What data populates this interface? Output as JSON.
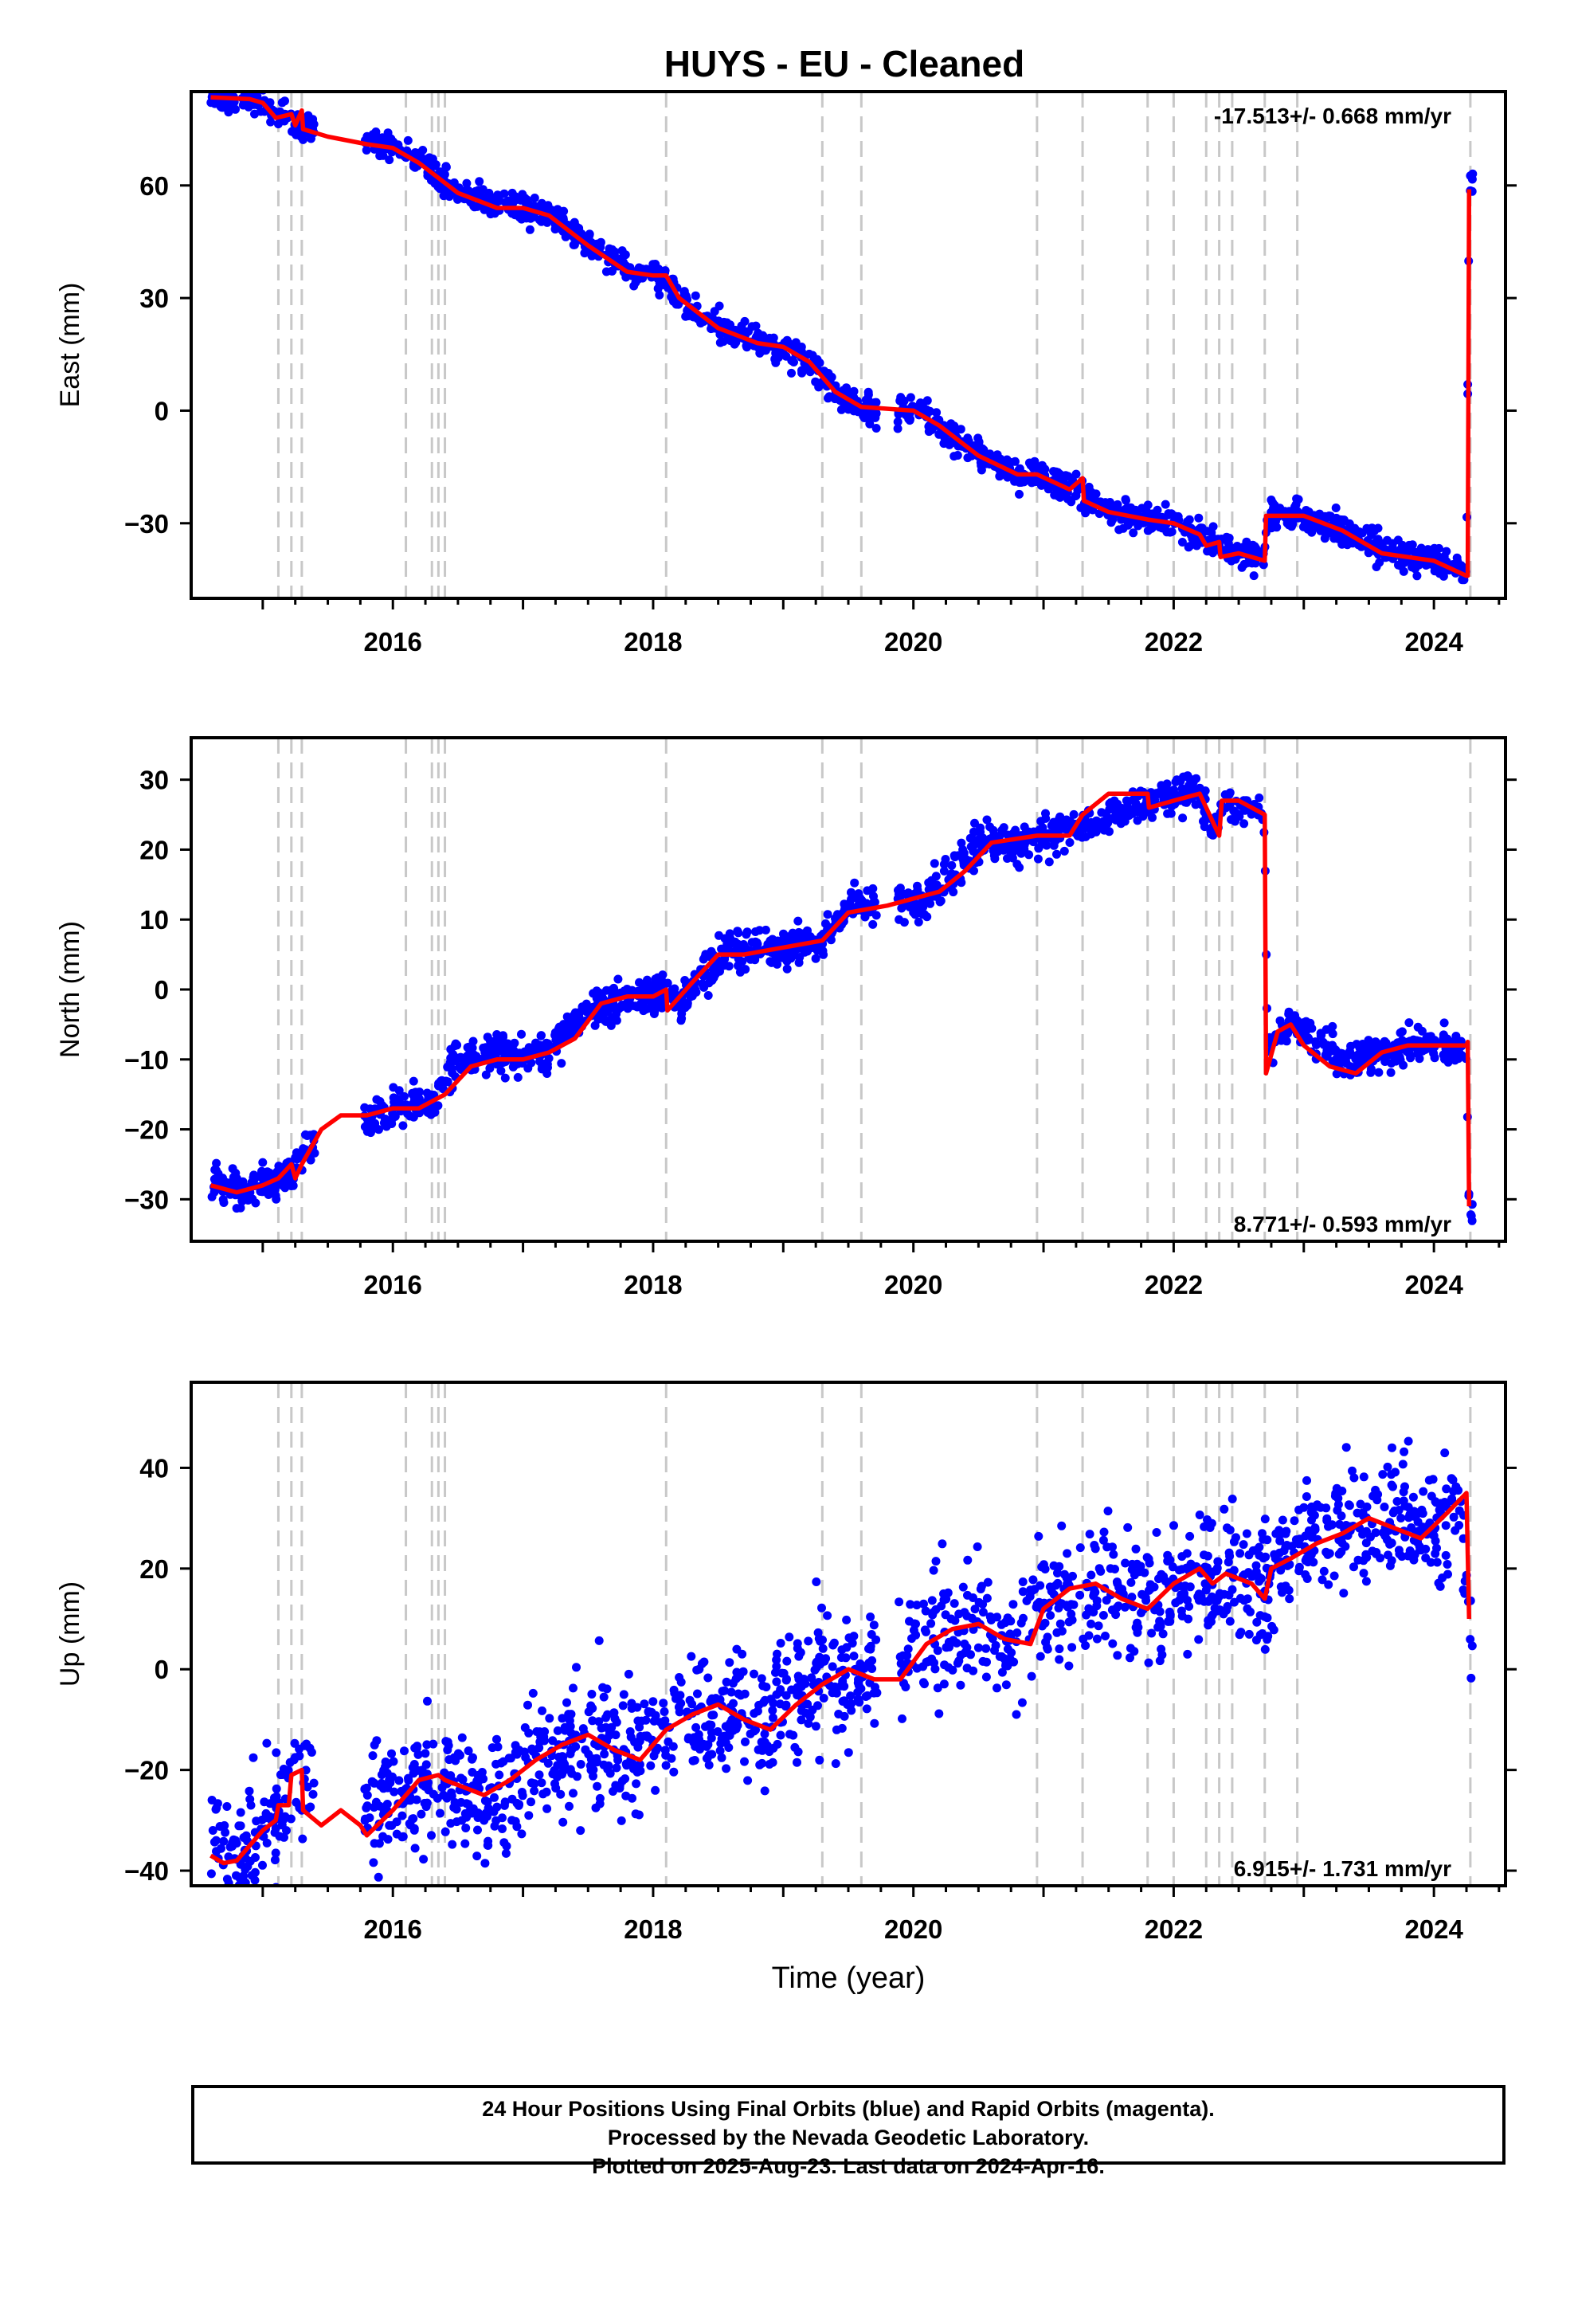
{
  "title": "HUYS  - EU - Cleaned",
  "footer": {
    "line1": "24 Hour Positions Using Final Orbits (blue) and Rapid Orbits (magenta).",
    "line2": "Processed by the Nevada Geodetic Laboratory.",
    "line3": "Plotted on 2025-Aug-23. Last data on 2024-Apr-16."
  },
  "colors": {
    "points": "#0000ff",
    "model": "#ff0000",
    "event_lines": "#c8c8c8"
  },
  "chart_data": [
    {
      "type": "scatter",
      "title": "HUYS  - EU - Cleaned",
      "xlabel": "",
      "ylabel": "East (mm)",
      "xlim": [
        2014.45,
        2024.55
      ],
      "ylim": [
        -50,
        85
      ],
      "xticks": [
        "2016",
        "2018",
        "2020",
        "2022",
        "2024"
      ],
      "yticks": [
        "60",
        "30",
        "0",
        "-30"
      ],
      "rate_label": "-17.513+/- 0.668 mm/yr",
      "rate_position": "top-right",
      "event_lines": [
        2015.12,
        2015.22,
        2015.3,
        2016.1,
        2016.3,
        2016.35,
        2016.4,
        2018.1,
        2019.3,
        2019.6,
        2020.95,
        2021.3,
        2021.8,
        2022.0,
        2022.25,
        2022.35,
        2022.45,
        2022.7,
        2022.95,
        2024.28
      ],
      "series": [
        {
          "name": "positions",
          "style": "points",
          "noise": 1.8,
          "x": [
            2014.6,
            2014.8,
            2015.0,
            2015.12,
            2015.22,
            2015.35,
            2015.5,
            2015.8,
            2016.0,
            2016.2,
            2016.5,
            2016.8,
            2017.0,
            2017.2,
            2017.5,
            2017.8,
            2018.0,
            2018.1,
            2018.2,
            2018.5,
            2018.8,
            2019.0,
            2019.2,
            2019.4,
            2019.6,
            2020.0,
            2020.2,
            2020.5,
            2020.8,
            2020.95,
            2021.2,
            2021.3,
            2021.5,
            2021.8,
            2022.0,
            2022.2,
            2022.35,
            2022.5,
            2022.7,
            2022.72,
            2023.0,
            2023.3,
            2023.6,
            2024.0,
            2024.25,
            2024.27,
            2024.3
          ],
          "y": [
            84,
            83,
            82,
            79,
            77,
            75,
            73,
            72,
            71,
            67,
            58,
            55,
            54,
            52,
            44,
            37,
            36,
            35,
            30,
            22,
            18,
            16,
            13,
            5,
            1,
            0,
            -4,
            -12,
            -17,
            -17,
            -20,
            -22,
            -27,
            -29,
            -30,
            -33,
            -36,
            -38,
            -39,
            -27,
            -28,
            -32,
            -37,
            -40,
            -43,
            58,
            61
          ]
        },
        {
          "name": "model",
          "style": "line",
          "x": [
            2014.6,
            2014.9,
            2015.0,
            2015.1,
            2015.22,
            2015.25,
            2015.3,
            2015.31,
            2015.5,
            2015.8,
            2016.0,
            2016.2,
            2016.5,
            2016.8,
            2017.0,
            2017.2,
            2017.5,
            2017.8,
            2018.0,
            2018.1,
            2018.2,
            2018.5,
            2018.8,
            2019.0,
            2019.2,
            2019.4,
            2019.6,
            2020.0,
            2020.2,
            2020.5,
            2020.8,
            2020.95,
            2021.2,
            2021.3,
            2021.31,
            2021.5,
            2021.8,
            2022.0,
            2022.2,
            2022.25,
            2022.35,
            2022.36,
            2022.5,
            2022.7,
            2022.71,
            2023.0,
            2023.3,
            2023.6,
            2024.0,
            2024.25,
            2024.26,
            2024.27
          ],
          "y": [
            83.5,
            83,
            82,
            78,
            79,
            76,
            80,
            75,
            73,
            71,
            70,
            66,
            58,
            54,
            54,
            52,
            44,
            37,
            36,
            36,
            30,
            22,
            18,
            17,
            13,
            5,
            1,
            0,
            -4,
            -12,
            -17,
            -17,
            -21,
            -18,
            -24,
            -27,
            -29,
            -30,
            -33,
            -36,
            -35,
            -39,
            -38,
            -40,
            -28,
            -28,
            -32,
            -38,
            -40,
            -44,
            -44,
            59
          ]
        }
      ]
    },
    {
      "type": "scatter",
      "xlabel": "",
      "ylabel": "North (mm)",
      "xlim": [
        2014.45,
        2024.55
      ],
      "ylim": [
        -36,
        36
      ],
      "xticks": [
        "2016",
        "2018",
        "2020",
        "2022",
        "2024"
      ],
      "yticks": [
        "30",
        "20",
        "10",
        "0",
        "-10",
        "-20",
        "-30"
      ],
      "rate_label": "8.771+/- 0.593 mm/yr",
      "rate_position": "bottom-right",
      "event_lines": [
        2015.12,
        2015.22,
        2015.3,
        2016.1,
        2016.3,
        2016.35,
        2016.4,
        2018.1,
        2019.3,
        2019.6,
        2020.95,
        2021.3,
        2021.8,
        2022.0,
        2022.25,
        2022.35,
        2022.45,
        2022.7,
        2022.95,
        2024.28
      ],
      "series": [
        {
          "name": "positions",
          "style": "points",
          "noise": 1.3,
          "x": [
            2014.6,
            2014.8,
            2015.0,
            2015.2,
            2015.35,
            2015.8,
            2016.0,
            2016.3,
            2016.5,
            2016.8,
            2017.0,
            2017.2,
            2017.5,
            2017.8,
            2018.0,
            2018.1,
            2018.2,
            2018.5,
            2018.8,
            2019.0,
            2019.3,
            2019.5,
            2019.9,
            2020.1,
            2020.3,
            2020.5,
            2020.8,
            2021.0,
            2021.3,
            2021.5,
            2021.8,
            2022.0,
            2022.2,
            2022.3,
            2022.4,
            2022.7,
            2022.72,
            2022.9,
            2023.2,
            2023.5,
            2023.8,
            2024.0,
            2024.25,
            2024.27,
            2024.3
          ],
          "y": [
            -27,
            -29,
            -28,
            -26,
            -23,
            -18,
            -17,
            -16,
            -10,
            -9,
            -10,
            -9,
            -3,
            -1,
            -1,
            0,
            -2,
            5,
            6,
            6,
            7,
            12,
            12,
            13,
            16,
            21,
            21,
            22,
            23,
            25,
            27,
            28,
            28,
            23,
            27,
            25,
            -8,
            -5,
            -9,
            -10,
            -8,
            -8,
            -9,
            -31,
            -34
          ]
        },
        {
          "name": "model",
          "style": "line",
          "x": [
            2014.6,
            2014.8,
            2015.0,
            2015.12,
            2015.22,
            2015.25,
            2015.3,
            2015.45,
            2015.6,
            2015.8,
            2016.0,
            2016.2,
            2016.4,
            2016.6,
            2016.8,
            2017.0,
            2017.2,
            2017.4,
            2017.6,
            2017.8,
            2018.0,
            2018.1,
            2018.11,
            2018.3,
            2018.5,
            2018.7,
            2019.0,
            2019.3,
            2019.5,
            2019.8,
            2020.0,
            2020.2,
            2020.4,
            2020.6,
            2020.95,
            2021.2,
            2021.3,
            2021.5,
            2021.8,
            2021.81,
            2022.0,
            2022.2,
            2022.25,
            2022.35,
            2022.37,
            2022.5,
            2022.7,
            2022.71,
            2022.8,
            2022.9,
            2023.0,
            2023.2,
            2023.4,
            2023.6,
            2023.8,
            2024.0,
            2024.25,
            2024.26,
            2024.27
          ],
          "y": [
            -28,
            -29,
            -28,
            -27,
            -25,
            -27,
            -25,
            -20,
            -18,
            -18,
            -17,
            -17,
            -15,
            -11,
            -10,
            -10,
            -9,
            -7,
            -2,
            -1,
            -1,
            0,
            -3,
            1,
            5,
            5,
            6,
            7,
            11,
            12,
            13,
            14,
            17,
            21,
            22,
            22,
            25,
            28,
            28,
            26,
            27,
            28,
            26,
            22,
            27,
            27,
            25,
            -12,
            -6,
            -5,
            -8,
            -11,
            -12,
            -9,
            -8,
            -8,
            -8,
            -7.5,
            -31
          ]
        }
      ]
    },
    {
      "type": "scatter",
      "xlabel": "Time (year)",
      "ylabel": "Up (mm)",
      "xlim": [
        2014.45,
        2024.55
      ],
      "ylim": [
        -43,
        57
      ],
      "xticks": [
        "2016",
        "2018",
        "2020",
        "2022",
        "2024"
      ],
      "yticks": [
        "40",
        "20",
        "0",
        "-20",
        "-40"
      ],
      "rate_label": "6.915+/- 1.731 mm/yr",
      "rate_position": "bottom-right",
      "event_lines": [
        2015.12,
        2015.22,
        2015.3,
        2016.1,
        2016.3,
        2016.35,
        2016.4,
        2018.1,
        2019.3,
        2019.6,
        2020.95,
        2021.3,
        2021.8,
        2022.0,
        2022.25,
        2022.35,
        2022.45,
        2022.7,
        2022.95,
        2024.28
      ],
      "series": [
        {
          "name": "positions",
          "style": "points",
          "noise": 6,
          "x": [
            2014.6,
            2014.8,
            2015.0,
            2015.1,
            2015.2,
            2015.3,
            2015.8,
            2016.0,
            2016.3,
            2016.5,
            2016.7,
            2017.0,
            2017.3,
            2017.6,
            2017.8,
            2018.0,
            2018.3,
            2018.6,
            2018.8,
            2019.0,
            2019.3,
            2019.6,
            2019.9,
            2020.1,
            2020.4,
            2020.7,
            2020.9,
            2021.2,
            2021.5,
            2021.8,
            2022.0,
            2022.2,
            2022.4,
            2022.6,
            2022.7,
            2022.9,
            2023.2,
            2023.4,
            2023.7,
            2024.0,
            2024.2,
            2024.27,
            2024.3
          ],
          "y": [
            -36,
            -38,
            -32,
            -28,
            -24,
            -21,
            -30,
            -25,
            -22,
            -24,
            -27,
            -20,
            -17,
            -14,
            -18,
            -14,
            -11,
            -9,
            -11,
            -6,
            -1,
            -3,
            2,
            6,
            8,
            6,
            10,
            15,
            16,
            13,
            15,
            18,
            17,
            18,
            18,
            23,
            27,
            28,
            30,
            27,
            32,
            10,
            2
          ]
        },
        {
          "name": "model",
          "style": "line",
          "x": [
            2014.6,
            2014.7,
            2014.8,
            2014.9,
            2015.0,
            2015.1,
            2015.12,
            2015.2,
            2015.22,
            2015.3,
            2015.31,
            2015.45,
            2015.6,
            2015.75,
            2015.8,
            2016.0,
            2016.2,
            2016.35,
            2016.4,
            2016.5,
            2016.7,
            2016.9,
            2017.1,
            2017.3,
            2017.5,
            2017.7,
            2017.9,
            2018.1,
            2018.3,
            2018.5,
            2018.7,
            2018.9,
            2019.1,
            2019.3,
            2019.5,
            2019.7,
            2019.9,
            2020.1,
            2020.3,
            2020.5,
            2020.7,
            2020.9,
            2021.0,
            2021.2,
            2021.4,
            2021.6,
            2021.8,
            2022.0,
            2022.2,
            2022.3,
            2022.4,
            2022.6,
            2022.7,
            2022.75,
            2022.9,
            2023.1,
            2023.3,
            2023.5,
            2023.7,
            2023.9,
            2024.1,
            2024.25,
            2024.27
          ],
          "y": [
            -37,
            -38.5,
            -38,
            -35,
            -32,
            -30,
            -27,
            -27,
            -21,
            -20,
            -28,
            -31,
            -28,
            -31,
            -33,
            -28,
            -22,
            -21,
            -22,
            -23,
            -25,
            -22,
            -18,
            -15,
            -13,
            -16,
            -18,
            -12,
            -9,
            -7,
            -10,
            -12,
            -7,
            -3,
            0,
            -2,
            -2,
            5,
            8,
            9,
            6,
            5,
            12,
            16,
            17,
            14,
            12,
            17,
            20,
            17,
            19,
            17,
            14,
            20,
            22,
            25,
            27,
            30,
            28,
            26,
            31,
            35,
            10
          ]
        }
      ]
    }
  ]
}
